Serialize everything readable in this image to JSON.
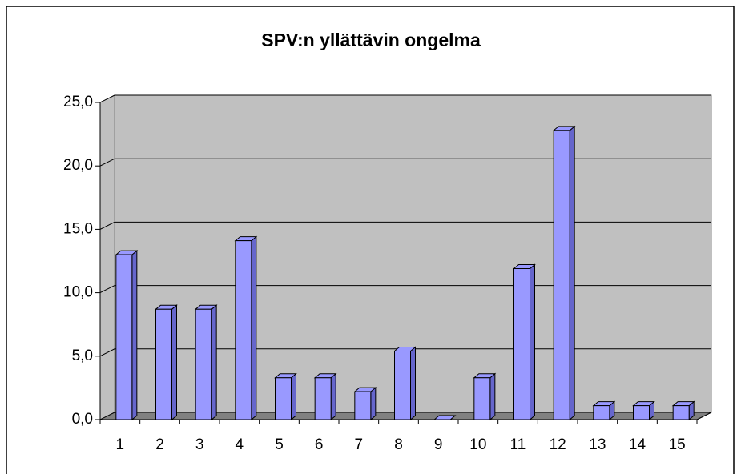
{
  "chart_data": {
    "type": "bar3d",
    "title": "SPV:n yllättävin ongelma",
    "categories": [
      "1",
      "2",
      "3",
      "4",
      "5",
      "6",
      "7",
      "8",
      "9",
      "10",
      "11",
      "12",
      "13",
      "14",
      "15"
    ],
    "values": [
      13.0,
      8.7,
      8.7,
      14.1,
      3.3,
      3.3,
      2.2,
      5.4,
      0,
      3.3,
      11.9,
      22.8,
      1.1,
      1.1,
      1.1
    ],
    "color": "#9999ff",
    "ylim": [
      0,
      25
    ],
    "yticks": [
      {
        "value": 0,
        "label": "0,0"
      },
      {
        "value": 5,
        "label": "5,0"
      },
      {
        "value": 10,
        "label": "10,0"
      },
      {
        "value": 15,
        "label": "15,0"
      },
      {
        "value": 20,
        "label": "20,0"
      },
      {
        "value": 25,
        "label": "25,0"
      }
    ],
    "grid": true
  }
}
